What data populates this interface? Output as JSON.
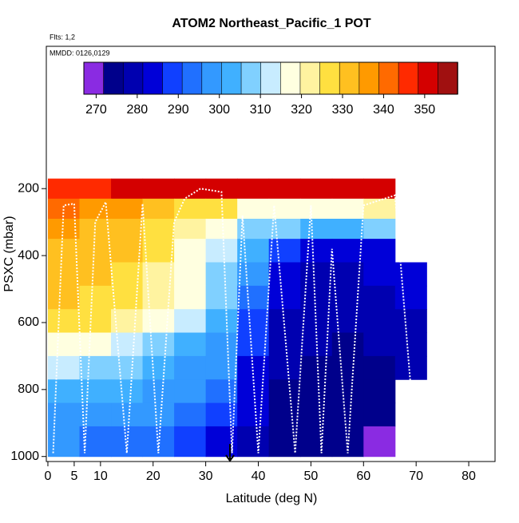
{
  "chart_data": {
    "type": "heatmap",
    "title": "ATOM2 Northeast_Pacific_1 POT",
    "flights_label": "Flts: 1,2",
    "dates_label": "MMDD: 0126,0129",
    "xlabel": "Latitude (deg N)",
    "ylabel": "PSXC (mbar)",
    "xlim": [
      -0.3,
      85
    ],
    "xticks": [
      0,
      5,
      10,
      20,
      30,
      40,
      50,
      60,
      70,
      80
    ],
    "ylim": [
      1015,
      -225
    ],
    "yticks": [
      200,
      400,
      600,
      800,
      1000
    ],
    "x_edges": [
      0,
      6,
      12,
      18,
      24,
      30,
      36,
      42,
      48,
      54,
      60,
      66,
      72
    ],
    "y_edges": [
      170,
      230,
      290,
      350,
      420,
      490,
      560,
      630,
      700,
      770,
      840,
      910,
      1000
    ],
    "values": [
      [
        345,
        348,
        350,
        350,
        350,
        352,
        352,
        352,
        352,
        350,
        350,
        null
      ],
      [
        340,
        338,
        336,
        333,
        328,
        325,
        318,
        316,
        316,
        318,
        320,
        null
      ],
      [
        336,
        334,
        332,
        328,
        322,
        316,
        310,
        306,
        304,
        304,
        306,
        null
      ],
      [
        334,
        332,
        330,
        325,
        318,
        312,
        305,
        290,
        284,
        284,
        286,
        null
      ],
      [
        332,
        330,
        328,
        322,
        316,
        310,
        300,
        284,
        280,
        280,
        282,
        285
      ],
      [
        330,
        328,
        325,
        320,
        315,
        308,
        295,
        282,
        278,
        278,
        280,
        282
      ],
      [
        328,
        326,
        322,
        318,
        312,
        305,
        290,
        280,
        278,
        277,
        278,
        280
      ],
      [
        318,
        316,
        314,
        310,
        305,
        300,
        288,
        278,
        277,
        276,
        277,
        278
      ],
      [
        312,
        310,
        308,
        304,
        300,
        296,
        285,
        277,
        276,
        275,
        276,
        277
      ],
      [
        305,
        303,
        301,
        299,
        296,
        292,
        283,
        276,
        275,
        274,
        274,
        null
      ],
      [
        300,
        299,
        298,
        296,
        294,
        290,
        282,
        276,
        274,
        273,
        272,
        null
      ],
      [
        296,
        295,
        294,
        292,
        290,
        286,
        280,
        276,
        274,
        272,
        270,
        null
      ]
    ],
    "colorbar": {
      "lim": [
        267,
        358
      ],
      "ticks": [
        270,
        280,
        290,
        300,
        310,
        320,
        330,
        340,
        350
      ],
      "colors": [
        "#8a2be2",
        "#00008b",
        "#0000b0",
        "#0000d8",
        "#1040ff",
        "#2070ff",
        "#3399ff",
        "#40b0ff",
        "#80d0ff",
        "#c8ecff",
        "#ffffe0",
        "#fff3a0",
        "#ffe040",
        "#ffc020",
        "#ff9a00",
        "#ff6a00",
        "#ff2a00",
        "#d40000",
        "#a01010"
      ]
    },
    "flight_track": {
      "x": [
        1,
        3,
        5,
        7,
        9,
        11,
        15,
        18,
        21,
        24,
        26,
        29,
        33,
        35,
        37,
        40,
        43,
        47,
        50,
        52,
        54,
        57,
        60,
        66,
        70
      ],
      "y": [
        990,
        250,
        245,
        990,
        300,
        240,
        990,
        245,
        990,
        300,
        230,
        200,
        210,
        990,
        280,
        990,
        250,
        990,
        250,
        990,
        380,
        990,
        250,
        220,
        990
      ]
    }
  }
}
